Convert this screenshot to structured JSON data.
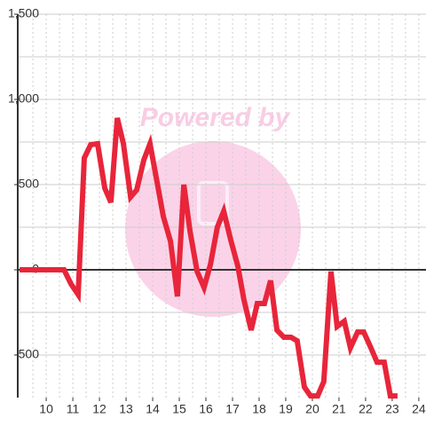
{
  "chart_data": {
    "type": "line",
    "watermark": "Powered by",
    "x": [
      9,
      10.67,
      10.93,
      11.2,
      11.43,
      11.67,
      11.93,
      12.2,
      12.43,
      12.67,
      12.9,
      13.17,
      13.4,
      13.67,
      13.9,
      14.17,
      14.4,
      14.67,
      14.93,
      15.17,
      15.4,
      15.67,
      15.93,
      16.17,
      16.43,
      16.67,
      16.93,
      17.2,
      17.43,
      17.7,
      17.93,
      18.2,
      18.43,
      18.67,
      18.93,
      19.2,
      19.43,
      19.7,
      19.93,
      20.2,
      20.43,
      20.7,
      20.93,
      21.2,
      21.43,
      21.7,
      21.93,
      22.2,
      22.43,
      22.7,
      22.93,
      23.2
    ],
    "series": [
      {
        "color": "#e8253a",
        "values": [
          0,
          0,
          -83,
          -146,
          656,
          734,
          740,
          479,
          396,
          891,
          740,
          427,
          469,
          646,
          740,
          510,
          313,
          167,
          -156,
          500,
          229,
          -10,
          -104,
          31,
          250,
          344,
          177,
          21,
          -177,
          -354,
          -198,
          -198,
          -63,
          -354,
          -396,
          -396,
          -417,
          -688,
          -740,
          -740,
          -656,
          -10,
          -333,
          -302,
          -458,
          -365,
          -365,
          -458,
          -542,
          -542,
          -740,
          -740
        ]
      }
    ],
    "xlim": [
      8.93,
      24.27
    ],
    "ylim": [
      -750,
      1500
    ],
    "xticks": [
      10,
      11,
      12,
      13,
      14,
      15,
      16,
      17,
      18,
      19,
      20,
      21,
      22,
      23,
      24
    ],
    "yticks": [
      {
        "value": 1500,
        "label": "1,500"
      },
      {
        "value": 1000,
        "label": "1,000"
      },
      500,
      0,
      -500
    ],
    "xgrid": [
      9.5,
      10,
      10.5,
      11,
      11.5,
      12,
      12.5,
      13,
      13.5,
      14,
      14.5,
      15,
      15.5,
      16,
      16.5,
      17,
      17.5,
      18,
      18.5,
      19,
      19.5,
      20,
      20.5,
      21,
      21.5,
      22,
      22.5,
      23,
      23.5,
      24
    ],
    "ygrid": [
      1500,
      1250,
      1000,
      750,
      500,
      250,
      -250,
      -500
    ]
  }
}
